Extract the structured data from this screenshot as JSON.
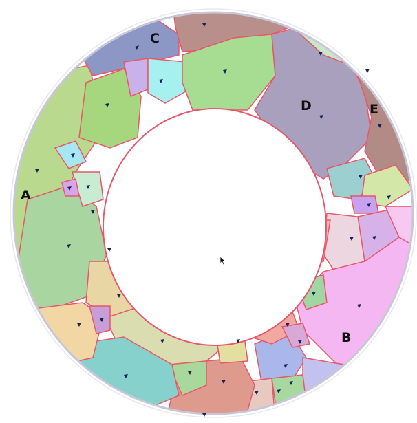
{
  "figure": {
    "labels": {
      "a": "A",
      "b": "B",
      "c": "C",
      "d": "D",
      "e": "E"
    },
    "colors": {
      "boundary": "#e8566a",
      "orientation_marker": "#1b1f5c",
      "background": "#ffffff",
      "grains": [
        "#b9d98f",
        "#f5b7f2",
        "#8c97c6",
        "#a9a0bd",
        "#b28a86",
        "#86d1cc",
        "#f2d7a4",
        "#d9ddb0",
        "#b7e0a5",
        "#a6e7f2"
      ]
    },
    "icons": {
      "cursor": "mouse-pointer-icon"
    }
  }
}
